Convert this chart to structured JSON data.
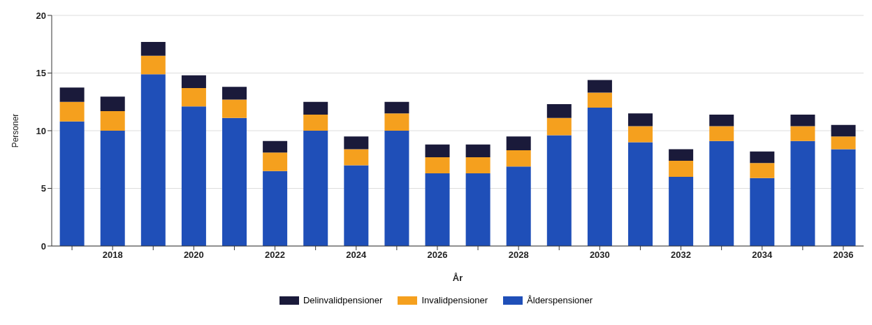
{
  "chart_data": {
    "type": "bar",
    "stacked": true,
    "xlabel": "År",
    "ylabel": "Personer",
    "categories": [
      null,
      "2018",
      null,
      "2020",
      null,
      "2022",
      null,
      "2024",
      null,
      "2026",
      null,
      "2028",
      null,
      "2030",
      null,
      "2032",
      null,
      "2034",
      null,
      "2036"
    ],
    "series": [
      {
        "name": "Ålderspensioner",
        "color": "#1f4fb8",
        "values": [
          10.8,
          10.0,
          14.9,
          12.1,
          11.1,
          6.5,
          10.0,
          7.0,
          10.0,
          6.3,
          6.3,
          6.9,
          9.6,
          12.0,
          9.0,
          6.0,
          9.1,
          5.9,
          9.1,
          8.4
        ]
      },
      {
        "name": "Invalidpensioner",
        "color": "#f5a01e",
        "values": [
          1.7,
          1.7,
          1.6,
          1.6,
          1.6,
          1.6,
          1.4,
          1.4,
          1.5,
          1.4,
          1.4,
          1.4,
          1.5,
          1.3,
          1.4,
          1.4,
          1.3,
          1.3,
          1.3,
          1.1
        ]
      },
      {
        "name": "Delinvalidpensioner",
        "color": "#1a1a3a",
        "values": [
          1.25,
          1.25,
          1.2,
          1.1,
          1.1,
          1.0,
          1.1,
          1.1,
          1.0,
          1.1,
          1.1,
          1.2,
          1.2,
          1.1,
          1.1,
          1.0,
          1.0,
          1.0,
          1.0,
          1.0
        ]
      }
    ],
    "ylim": [
      0,
      20
    ],
    "yticks": [
      0,
      5,
      10,
      15,
      20
    ],
    "grid": "y",
    "legend": "bottom"
  }
}
